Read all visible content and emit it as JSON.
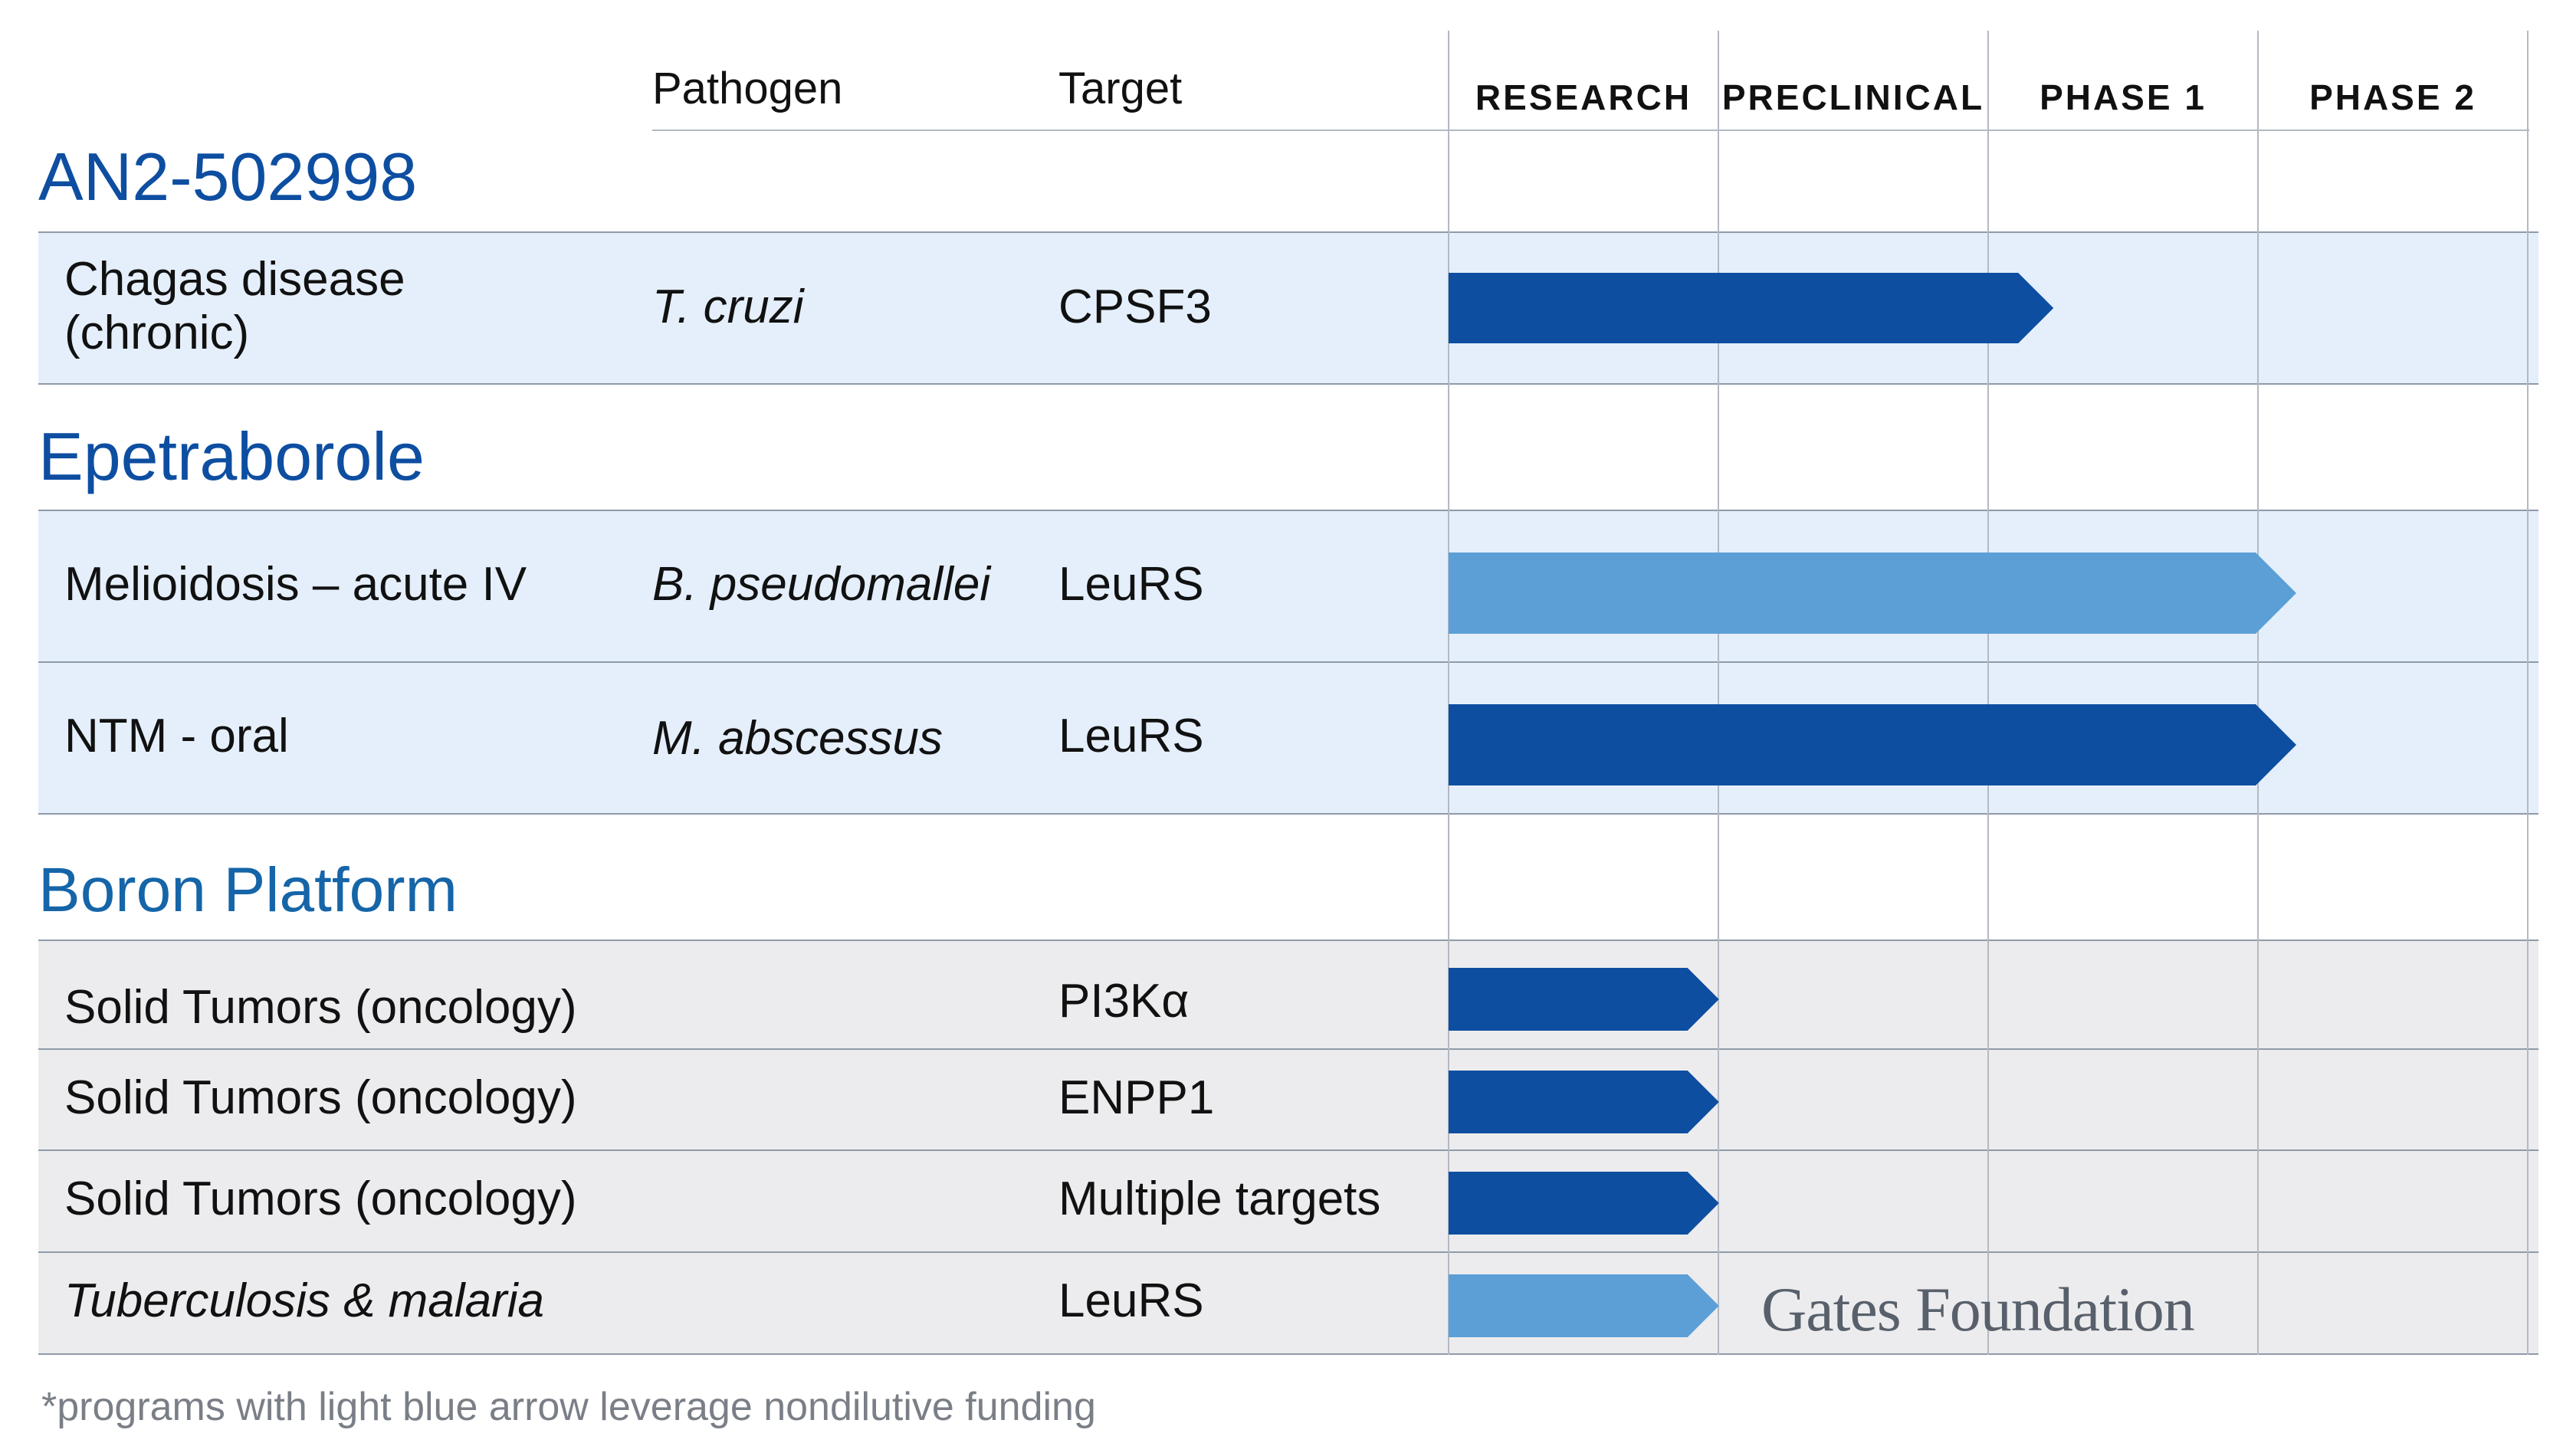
{
  "columns": {
    "pathogen": "Pathogen",
    "target": "Target",
    "stages": [
      "RESEARCH",
      "PRECLINICAL",
      "PHASE 1",
      "PHASE 2"
    ]
  },
  "sections": [
    {
      "title": "AN2-502998",
      "rows": [
        {
          "indication_line1": "Chagas disease",
          "indication_line2": "(chronic)",
          "pathogen": "T. cruzi",
          "target": "CPSF3",
          "stage_progress": 2.1,
          "arrow_color": "#0d4ea1"
        }
      ]
    },
    {
      "title": "Epetraborole",
      "rows": [
        {
          "indication": "Melioidosis – acute IV",
          "pathogen": "B. pseudomallei",
          "target": "LeuRS",
          "stage_progress": 3.0,
          "arrow_color": "#5b9fd6"
        },
        {
          "indication": "NTM - oral",
          "pathogen": "M. abscessus",
          "target": "LeuRS",
          "stage_progress": 3.0,
          "arrow_color": "#0d4ea1"
        }
      ]
    },
    {
      "title": "Boron Platform",
      "rows": [
        {
          "indication": "Solid Tumors (oncology)",
          "pathogen": "",
          "target": "PI3Kα",
          "stage_progress": 0.86,
          "arrow_color": "#0d4ea1"
        },
        {
          "indication": "Solid Tumors (oncology)",
          "pathogen": "",
          "target": "ENPP1",
          "stage_progress": 0.86,
          "arrow_color": "#0d4ea1"
        },
        {
          "indication": "Solid Tumors (oncology)",
          "pathogen": "",
          "target": "Multiple targets",
          "stage_progress": 0.86,
          "arrow_color": "#0d4ea1"
        },
        {
          "indication": "Tuberculosis & malaria",
          "pathogen": "",
          "target": "LeuRS",
          "stage_progress": 0.86,
          "arrow_color": "#5b9fd6"
        }
      ]
    }
  ],
  "logo_text": "Gates Foundation",
  "footnote": "*programs with light blue arrow leverage nondilutive funding",
  "colors": {
    "dark_blue": "#0d4ea1",
    "light_blue": "#5b9fd6",
    "section_title": "#0d4ea1",
    "band_blue": "#e5effb",
    "band_gray": "#ececee"
  }
}
